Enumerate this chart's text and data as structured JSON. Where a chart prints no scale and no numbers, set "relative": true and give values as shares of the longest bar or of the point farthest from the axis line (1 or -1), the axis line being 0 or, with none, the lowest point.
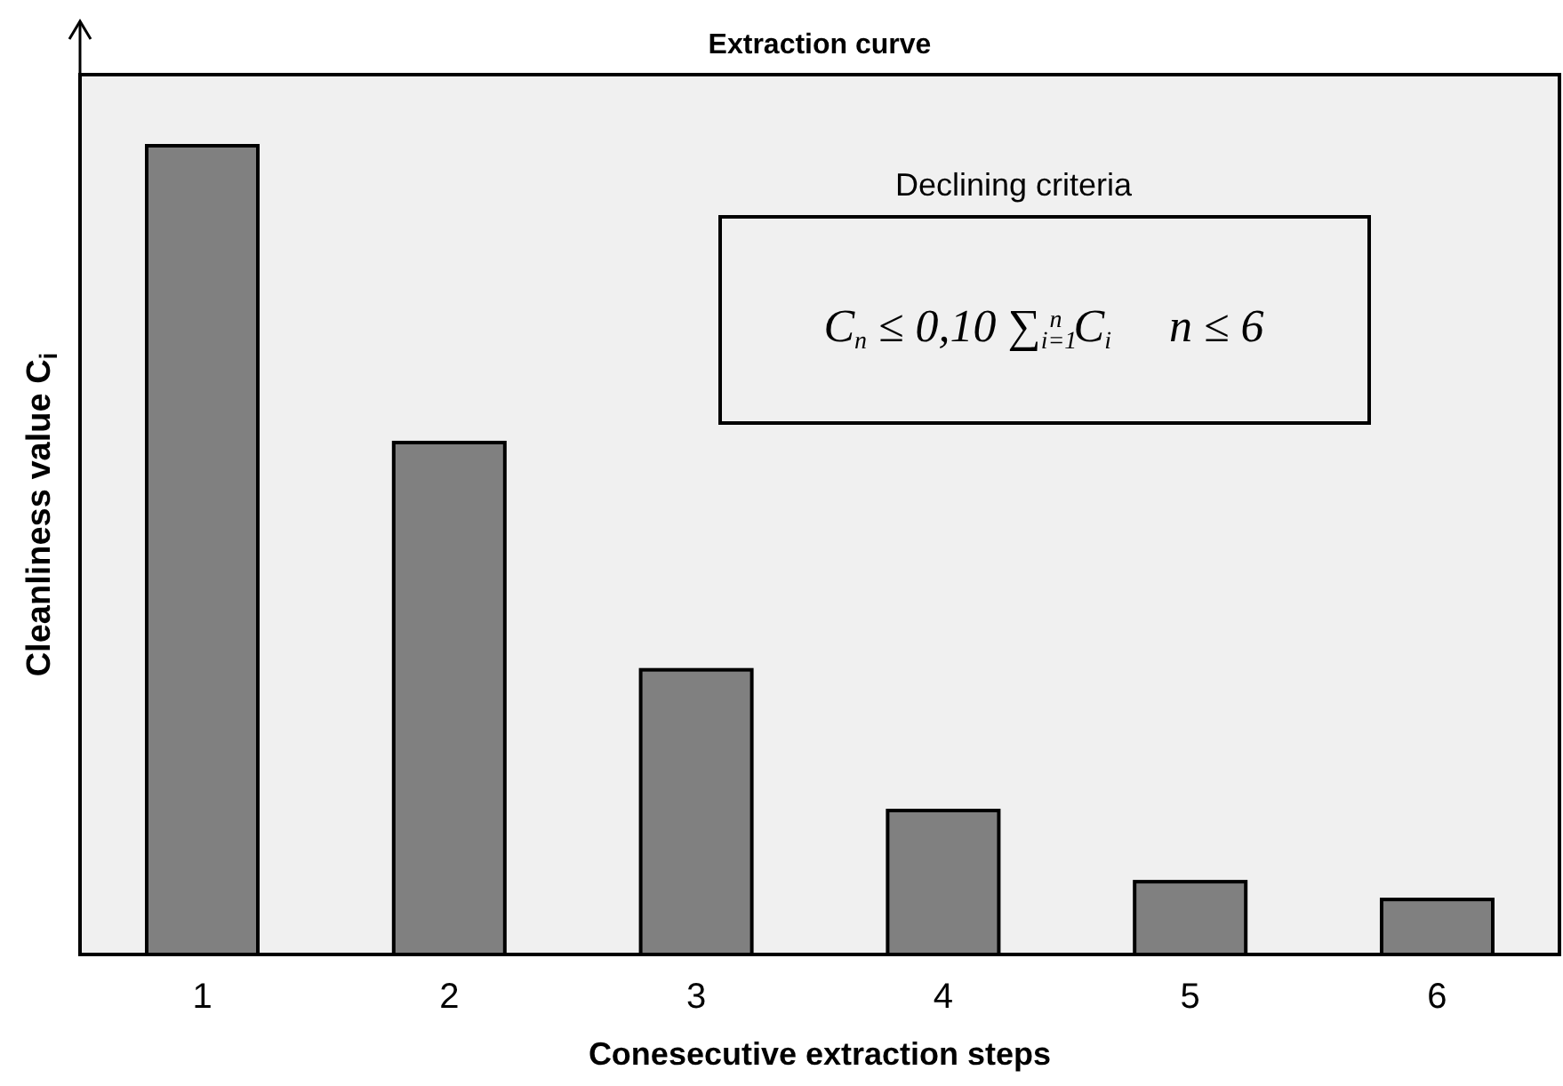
{
  "chart_data": {
    "type": "bar",
    "title": "Extraction curve",
    "xlabel": "Conesecutive extraction steps",
    "ylabel": "Cleanliness value C$_{i}$",
    "categories": [
      "1",
      "2",
      "3",
      "4",
      "5",
      "6"
    ],
    "values": [
      1,
      0.633,
      0.352,
      0.178,
      0.09,
      0.068
    ],
    "color": "#808080",
    "relative": true,
    "annotations": [
      "Declining criteria",
      "C$_{n}$ ≤ 0,10 ∑$_{i=1}$$^{n}$ C$_{i}$     n ≤ 6"
    ]
  }
}
